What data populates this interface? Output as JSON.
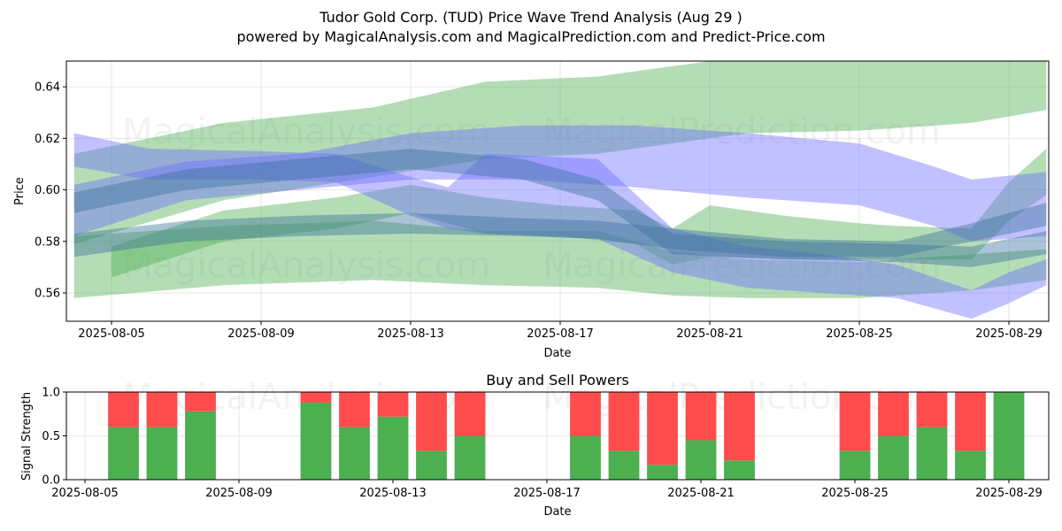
{
  "chart_data": [
    {
      "type": "area",
      "title": "Tudor Gold Corp. (TUD) Price Wave Trend Analysis (Aug 29 )",
      "subtitle": "powered by MagicalAnalysis.com and MagicalPrediction.com and Predict-Price.com",
      "xlabel": "Date",
      "ylabel": "Price",
      "ylim": [
        0.549,
        0.65
      ],
      "x_ticks": [
        "2025-08-05",
        "2025-08-09",
        "2025-08-13",
        "2025-08-17",
        "2025-08-21",
        "2025-08-25",
        "2025-08-29"
      ],
      "y_ticks": [
        "0.56",
        "0.58",
        "0.60",
        "0.62",
        "0.64"
      ],
      "grid": true,
      "watermarks": [
        "MagicalAnalysis.com",
        "MagicalPrediction.com"
      ],
      "series": [
        {
          "name": "green-wave-upper",
          "color": "#4caf50",
          "x": [
            4,
            8,
            12,
            15,
            18,
            20,
            22,
            25,
            28,
            30
          ],
          "lower": [
            0.579,
            0.596,
            0.605,
            0.612,
            0.614,
            0.618,
            0.622,
            0.623,
            0.626,
            0.631
          ],
          "upper": [
            0.614,
            0.626,
            0.632,
            0.642,
            0.644,
            0.648,
            0.652,
            0.651,
            0.653,
            0.655
          ]
        },
        {
          "name": "green-wave-lower",
          "color": "#4caf50",
          "x": [
            4,
            8,
            12,
            15,
            18,
            20,
            22,
            25,
            28,
            30
          ],
          "lower": [
            0.558,
            0.563,
            0.565,
            0.563,
            0.562,
            0.559,
            0.558,
            0.558,
            0.561,
            0.565
          ],
          "upper": [
            0.582,
            0.586,
            0.588,
            0.584,
            0.584,
            0.576,
            0.573,
            0.572,
            0.575,
            0.577
          ]
        },
        {
          "name": "green-wave-mid",
          "color": "#4caf50",
          "x": [
            5,
            8,
            11,
            13,
            15,
            17,
            19,
            20,
            21,
            23,
            25,
            26,
            28,
            29,
            30
          ],
          "lower": [
            0.566,
            0.58,
            0.585,
            0.591,
            0.583,
            0.582,
            0.579,
            0.571,
            0.574,
            0.573,
            0.573,
            0.573,
            0.573,
            0.588,
            0.598
          ],
          "upper": [
            0.578,
            0.592,
            0.597,
            0.602,
            0.597,
            0.594,
            0.592,
            0.585,
            0.594,
            0.59,
            0.587,
            0.586,
            0.585,
            0.603,
            0.616
          ]
        },
        {
          "name": "blue-wave-upper",
          "color": "#6b6bff",
          "x": [
            4,
            7,
            10,
            13,
            16,
            19,
            22,
            25,
            27,
            28,
            30
          ],
          "lower": [
            0.582,
            0.596,
            0.6,
            0.604,
            0.604,
            0.601,
            0.597,
            0.594,
            0.586,
            0.58,
            0.582
          ],
          "upper": [
            0.602,
            0.611,
            0.614,
            0.622,
            0.625,
            0.625,
            0.622,
            0.618,
            0.609,
            0.604,
            0.607
          ]
        },
        {
          "name": "blue-wave-lower",
          "color": "#6b6bff",
          "x": [
            4,
            6,
            9,
            11,
            13,
            14,
            15,
            18,
            20,
            22,
            24,
            26,
            28,
            29,
            30
          ],
          "lower": [
            0.609,
            0.604,
            0.604,
            0.603,
            0.59,
            0.585,
            0.583,
            0.581,
            0.568,
            0.562,
            0.56,
            0.558,
            0.55,
            0.556,
            0.563
          ],
          "upper": [
            0.622,
            0.616,
            0.615,
            0.614,
            0.605,
            0.601,
            0.614,
            0.612,
            0.585,
            0.578,
            0.575,
            0.571,
            0.561,
            0.568,
            0.573
          ]
        },
        {
          "name": "steel-wave-1",
          "color": "#3a6f9a",
          "x": [
            4,
            7,
            10,
            13,
            16,
            18,
            20,
            23,
            26,
            28,
            30
          ],
          "lower": [
            0.591,
            0.6,
            0.604,
            0.608,
            0.604,
            0.596,
            0.575,
            0.573,
            0.572,
            0.57,
            0.575
          ],
          "upper": [
            0.599,
            0.608,
            0.612,
            0.616,
            0.612,
            0.604,
            0.583,
            0.58,
            0.579,
            0.578,
            0.584
          ]
        },
        {
          "name": "steel-wave-2",
          "color": "#3a6f9a",
          "x": [
            4,
            7,
            10,
            13,
            16,
            18,
            20,
            23,
            26,
            28,
            30
          ],
          "lower": [
            0.574,
            0.58,
            0.582,
            0.583,
            0.582,
            0.581,
            0.577,
            0.574,
            0.574,
            0.58,
            0.586
          ],
          "upper": [
            0.583,
            0.588,
            0.59,
            0.591,
            0.589,
            0.588,
            0.585,
            0.581,
            0.58,
            0.587,
            0.595
          ]
        }
      ]
    },
    {
      "type": "bar",
      "title": "Buy and Sell Powers",
      "xlabel": "Date",
      "ylabel": "Signal Strength",
      "ylim": [
        0,
        1
      ],
      "x_ticks": [
        "2025-08-05",
        "2025-08-09",
        "2025-08-13",
        "2025-08-17",
        "2025-08-21",
        "2025-08-25",
        "2025-08-29"
      ],
      "y_ticks": [
        "0.0",
        "0.5",
        "1.0"
      ],
      "grid": true,
      "buy_color": "#4caf50",
      "sell_color": "#ff4c4c",
      "days": [
        6,
        7,
        8,
        11,
        12,
        13,
        14,
        15,
        18,
        19,
        20,
        21,
        22,
        25,
        26,
        27,
        28,
        29
      ],
      "buy": [
        0.6,
        0.6,
        0.78,
        0.88,
        0.6,
        0.72,
        0.33,
        0.5,
        0.5,
        0.33,
        0.17,
        0.45,
        0.22,
        0.33,
        0.5,
        0.6,
        0.33,
        1.0
      ],
      "sell": [
        0.4,
        0.4,
        0.22,
        0.12,
        0.4,
        0.28,
        0.67,
        0.5,
        0.5,
        0.67,
        0.83,
        0.55,
        0.78,
        0.67,
        0.5,
        0.4,
        0.67,
        0.0
      ]
    }
  ]
}
